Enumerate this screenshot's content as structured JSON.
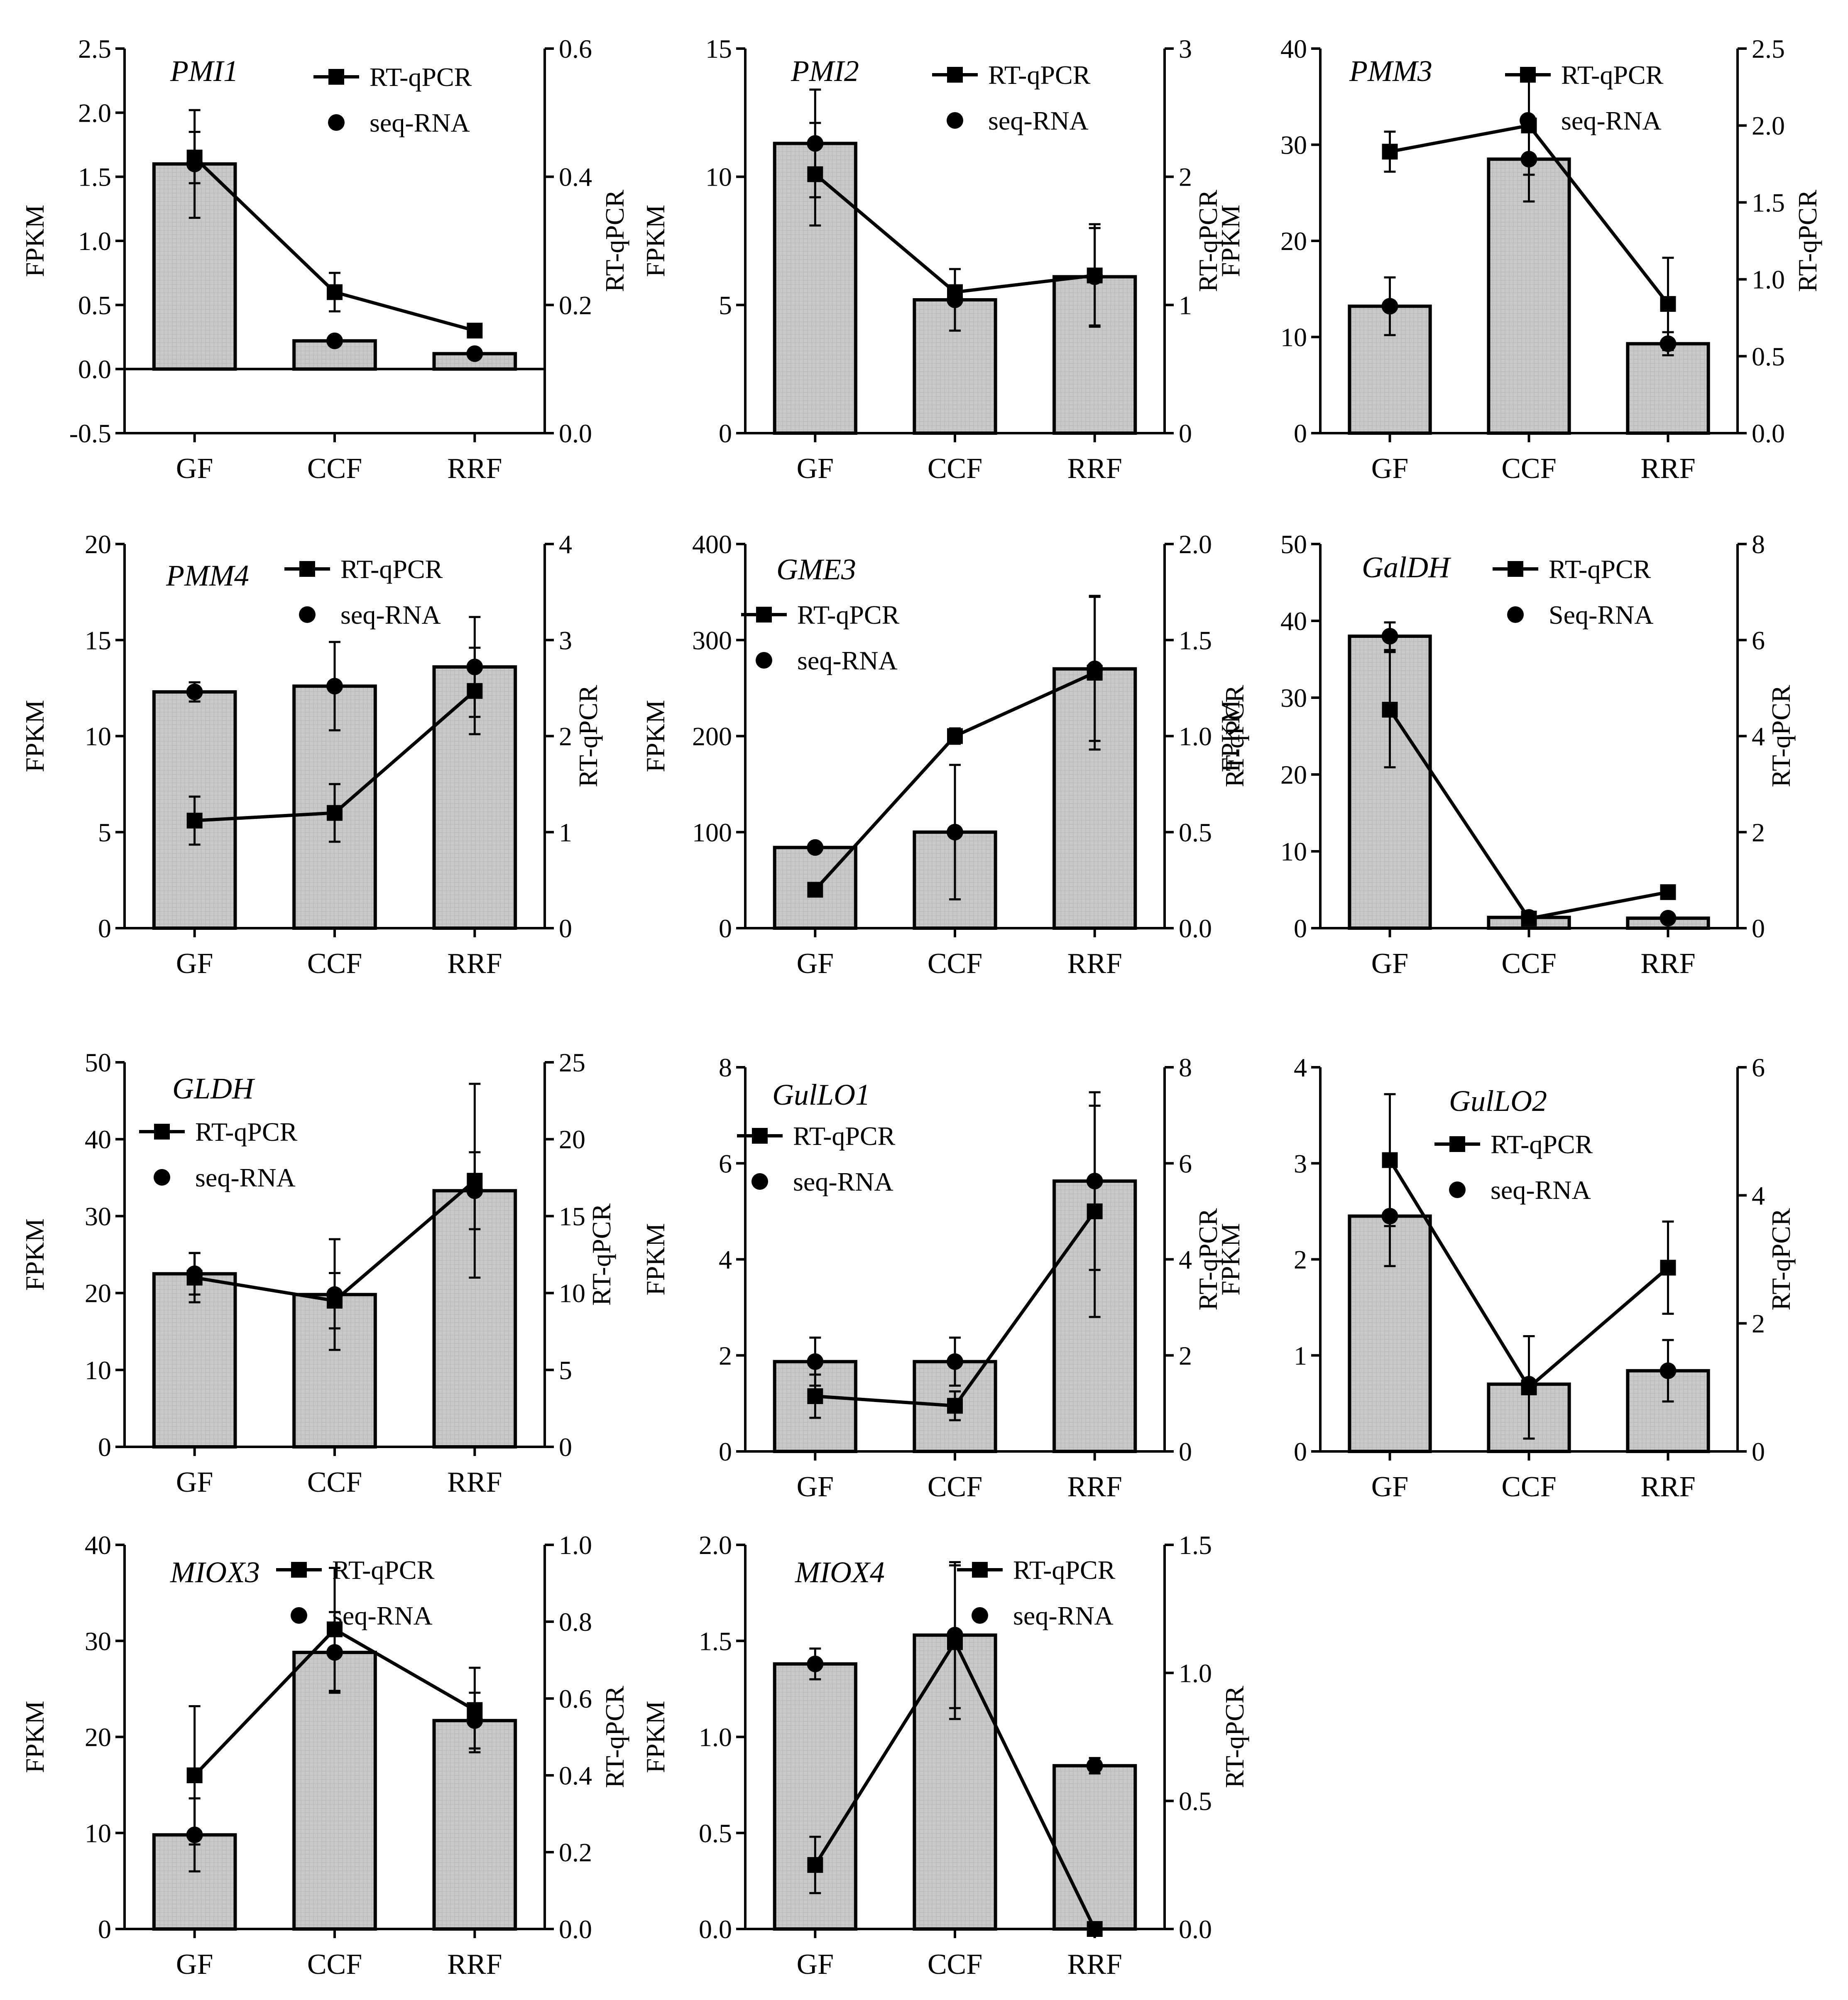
{
  "figure": {
    "description_domain": "Chart",
    "categories": [
      "GF",
      "CCF",
      "RRF"
    ]
  },
  "chart_data": [
    {
      "type": "bar",
      "title": "PMI1",
      "xlabel": "",
      "ylabel": "FPKM",
      "y2label": "RT-qPCR",
      "categories": [
        "GF",
        "CCF",
        "RRF"
      ],
      "ylim": [
        -0.5,
        2.5
      ],
      "yticks": [
        "-0.5",
        "0.0",
        "0.5",
        "1.0",
        "1.5",
        "2.0",
        "2.5"
      ],
      "ytick_values": [
        -0.5,
        0,
        0.5,
        1,
        1.5,
        2,
        2.5
      ],
      "y2lim": [
        0,
        0.6
      ],
      "y2ticks": [
        "0.0",
        "0.2",
        "0.4",
        "0.6"
      ],
      "y2tick_values": [
        0,
        0.2,
        0.4,
        0.6
      ],
      "legend": [
        "RT-qPCR",
        "seq-RNA"
      ],
      "legend_position": "top-right",
      "series": [
        {
          "name": "seq-RNA",
          "kind": "bar+dot",
          "values": [
            1.6,
            0.22,
            0.12
          ],
          "errors": [
            0.42,
            0.0,
            0.0
          ]
        },
        {
          "name": "RT-qPCR",
          "kind": "line+square",
          "values": [
            0.43,
            0.22,
            0.16
          ],
          "errors": [
            0.04,
            0.03,
            0.0
          ]
        }
      ]
    },
    {
      "type": "bar",
      "title": "PMI2",
      "xlabel": "",
      "ylabel": "FPKM",
      "y2label": "RT-qPCR",
      "categories": [
        "GF",
        "CCF",
        "RRF"
      ],
      "ylim": [
        0,
        15
      ],
      "yticks": [
        "0",
        "5",
        "10",
        "15"
      ],
      "ytick_values": [
        0,
        5,
        10,
        15
      ],
      "y2lim": [
        0,
        3
      ],
      "y2ticks": [
        "0",
        "1",
        "2",
        "3"
      ],
      "y2tick_values": [
        0,
        1,
        2,
        3
      ],
      "legend": [
        "RT-qPCR",
        "seq-RNA"
      ],
      "legend_position": "top-right",
      "series": [
        {
          "name": "seq-RNA",
          "kind": "bar+dot",
          "values": [
            11.3,
            5.2,
            6.1
          ],
          "errors": [
            2.1,
            1.2,
            1.9
          ]
        },
        {
          "name": "RT-qPCR",
          "kind": "line+square",
          "values": [
            2.02,
            1.1,
            1.23
          ],
          "errors": [
            0.4,
            0.0,
            0.4
          ]
        }
      ]
    },
    {
      "type": "bar",
      "title": "PMM3",
      "xlabel": "",
      "ylabel": "FPKM",
      "y2label": "RT-qPCR",
      "categories": [
        "GF",
        "CCF",
        "RRF"
      ],
      "ylim": [
        0,
        40
      ],
      "yticks": [
        "0",
        "10",
        "20",
        "30",
        "40"
      ],
      "ytick_values": [
        0,
        10,
        20,
        30,
        40
      ],
      "y2lim": [
        0,
        2.5
      ],
      "y2ticks": [
        "0.0",
        "0.5",
        "1.0",
        "1.5",
        "2.0",
        "2.5"
      ],
      "y2tick_values": [
        0,
        0.5,
        1,
        1.5,
        2,
        2.5
      ],
      "legend": [
        "RT-qPCR",
        "seq-RNA"
      ],
      "legend_position": "top-right",
      "series": [
        {
          "name": "seq-RNA",
          "kind": "bar+dot",
          "values": [
            13.2,
            28.5,
            9.3
          ],
          "errors": [
            3.0,
            4.4,
            1.2
          ]
        },
        {
          "name": "RT-qPCR",
          "kind": "line+square",
          "values": [
            1.83,
            2.0,
            0.84
          ],
          "errors": [
            0.13,
            0.32,
            0.3
          ]
        }
      ]
    },
    {
      "type": "bar",
      "title": "PMM4",
      "xlabel": "",
      "ylabel": "FPKM",
      "y2label": "RT-qPCR",
      "categories": [
        "GF",
        "CCF",
        "RRF"
      ],
      "ylim": [
        0,
        20
      ],
      "yticks": [
        "0",
        "5",
        "10",
        "15",
        "20"
      ],
      "ytick_values": [
        0,
        5,
        10,
        15,
        20
      ],
      "y2lim": [
        0,
        4
      ],
      "y2ticks": [
        "0",
        "1",
        "2",
        "3",
        "4"
      ],
      "y2tick_values": [
        0,
        1,
        2,
        3,
        4
      ],
      "legend": [
        "RT-qPCR",
        "seq-RNA"
      ],
      "legend_position": "top-right",
      "series": [
        {
          "name": "seq-RNA",
          "kind": "bar+dot",
          "values": [
            12.3,
            12.6,
            13.6
          ],
          "errors": [
            0.5,
            2.3,
            2.6
          ]
        },
        {
          "name": "RT-qPCR",
          "kind": "line+square",
          "values": [
            1.12,
            1.2,
            2.47
          ],
          "errors": [
            0.25,
            0.3,
            0.45
          ]
        }
      ]
    },
    {
      "type": "bar",
      "title": "GME3",
      "xlabel": "",
      "ylabel": "FPKM",
      "y2label": "RT-qPCR",
      "categories": [
        "GF",
        "CCF",
        "RRF"
      ],
      "ylim": [
        0,
        400
      ],
      "yticks": [
        "0",
        "100",
        "200",
        "300",
        "400"
      ],
      "ytick_values": [
        0,
        100,
        200,
        300,
        400
      ],
      "y2lim": [
        0,
        2.0
      ],
      "y2ticks": [
        "0.0",
        "0.5",
        "1.0",
        "1.5",
        "2.0"
      ],
      "y2tick_values": [
        0,
        0.5,
        1,
        1.5,
        2
      ],
      "legend": [
        "RT-qPCR",
        "seq-RNA"
      ],
      "legend_position": "top-left",
      "series": [
        {
          "name": "seq-RNA",
          "kind": "bar+dot",
          "values": [
            84,
            100,
            270
          ],
          "errors": [
            0,
            70,
            75
          ]
        },
        {
          "name": "RT-qPCR",
          "kind": "line+square",
          "values": [
            0.2,
            1.0,
            1.33
          ],
          "errors": [
            0.0,
            0.04,
            0.4
          ]
        }
      ]
    },
    {
      "type": "bar",
      "title": "GalDH",
      "xlabel": "",
      "ylabel": "FPKM",
      "y2label": "RT-qPCR",
      "categories": [
        "GF",
        "CCF",
        "RRF"
      ],
      "ylim": [
        0,
        50
      ],
      "yticks": [
        "0",
        "10",
        "20",
        "30",
        "40",
        "50"
      ],
      "ytick_values": [
        0,
        10,
        20,
        30,
        40,
        50
      ],
      "y2lim": [
        0,
        8
      ],
      "y2ticks": [
        "0",
        "2",
        "4",
        "6",
        "8"
      ],
      "y2tick_values": [
        0,
        2,
        4,
        6,
        8
      ],
      "legend": [
        "RT-qPCR",
        "Seq-RNA"
      ],
      "legend_position": "top-right",
      "series": [
        {
          "name": "Seq-RNA",
          "kind": "bar+dot",
          "values": [
            38.0,
            1.4,
            1.3
          ],
          "errors": [
            1.8,
            0.0,
            0.0
          ]
        },
        {
          "name": "RT-qPCR",
          "kind": "line+square",
          "values": [
            4.55,
            0.2,
            0.75
          ],
          "errors": [
            1.2,
            0.0,
            0.0
          ]
        }
      ]
    },
    {
      "type": "bar",
      "title": "GLDH",
      "xlabel": "",
      "ylabel": "FPKM",
      "y2label": "RT-qPCR",
      "categories": [
        "GF",
        "CCF",
        "RRF"
      ],
      "ylim": [
        0,
        50
      ],
      "yticks": [
        "0",
        "10",
        "20",
        "30",
        "40",
        "50"
      ],
      "ytick_values": [
        0,
        10,
        20,
        30,
        40,
        50
      ],
      "y2lim": [
        0,
        25
      ],
      "y2ticks": [
        "0",
        "5",
        "10",
        "15",
        "20",
        "25"
      ],
      "y2tick_values": [
        0,
        5,
        10,
        15,
        20,
        25
      ],
      "legend": [
        "RT-qPCR",
        "seq-RNA"
      ],
      "legend_position": "top-left",
      "series": [
        {
          "name": "seq-RNA",
          "kind": "bar+dot",
          "values": [
            22.5,
            19.8,
            33.3
          ],
          "errors": [
            2.7,
            7.2,
            5.0
          ]
        },
        {
          "name": "RT-qPCR",
          "kind": "line+square",
          "values": [
            11.0,
            9.5,
            17.3
          ],
          "errors": [
            1.6,
            1.8,
            6.3
          ]
        }
      ]
    },
    {
      "type": "bar",
      "title": "GulLO1",
      "xlabel": "",
      "ylabel": "FPKM",
      "y2label": "RT-qPCR",
      "categories": [
        "GF",
        "CCF",
        "RRF"
      ],
      "ylim": [
        0,
        8
      ],
      "yticks": [
        "0",
        "2",
        "4",
        "6",
        "8"
      ],
      "ytick_values": [
        0,
        2,
        4,
        6,
        8
      ],
      "y2lim": [
        0,
        8
      ],
      "y2ticks": [
        "0",
        "2",
        "4",
        "6",
        "8"
      ],
      "y2tick_values": [
        0,
        2,
        4,
        6,
        8
      ],
      "legend": [
        "RT-qPCR",
        "seq-RNA"
      ],
      "legend_position": "top-left",
      "series": [
        {
          "name": "seq-RNA",
          "kind": "bar+dot",
          "values": [
            1.87,
            1.87,
            5.63
          ],
          "errors": [
            0.5,
            0.5,
            1.85
          ]
        },
        {
          "name": "RT-qPCR",
          "kind": "line+square",
          "values": [
            1.15,
            0.95,
            5.0
          ],
          "errors": [
            0.45,
            0.3,
            2.2
          ]
        }
      ]
    },
    {
      "type": "bar",
      "title": "GulLO2",
      "xlabel": "",
      "ylabel": "FPKM",
      "y2label": "RT-qPCR",
      "categories": [
        "GF",
        "CCF",
        "RRF"
      ],
      "ylim": [
        0,
        4
      ],
      "yticks": [
        "0",
        "1",
        "2",
        "3",
        "4"
      ],
      "ytick_values": [
        0,
        1,
        2,
        3,
        4
      ],
      "y2lim": [
        0,
        6
      ],
      "y2ticks": [
        "0",
        "2",
        "4",
        "6"
      ],
      "y2tick_values": [
        0,
        2,
        4,
        6
      ],
      "legend": [
        "RT-qPCR",
        "seq-RNA"
      ],
      "legend_position": "top-right",
      "series": [
        {
          "name": "seq-RNA",
          "kind": "bar+dot",
          "values": [
            2.45,
            0.7,
            0.84
          ],
          "errors": [
            0.52,
            0.0,
            0.32
          ]
        },
        {
          "name": "RT-qPCR",
          "kind": "line+square",
          "values": [
            4.55,
            1.0,
            2.87
          ],
          "errors": [
            1.03,
            0.8,
            0.72
          ]
        }
      ]
    },
    {
      "type": "bar",
      "title": "MIOX3",
      "xlabel": "",
      "ylabel": "FPKM",
      "y2label": "RT-qPCR",
      "categories": [
        "GF",
        "CCF",
        "RRF"
      ],
      "ylim": [
        0,
        40
      ],
      "yticks": [
        "0",
        "10",
        "20",
        "30",
        "40"
      ],
      "ytick_values": [
        0,
        10,
        20,
        30,
        40
      ],
      "y2lim": [
        0,
        1.0
      ],
      "y2ticks": [
        "0.0",
        "0.2",
        "0.4",
        "0.6",
        "0.8",
        "1.0"
      ],
      "y2tick_values": [
        0,
        0.2,
        0.4,
        0.6,
        0.8,
        1.0
      ],
      "legend": [
        "RT-qPCR",
        "seq-RNA"
      ],
      "legend_position": "top-right",
      "series": [
        {
          "name": "seq-RNA",
          "kind": "bar+dot",
          "values": [
            9.8,
            28.8,
            21.7
          ],
          "errors": [
            3.8,
            4.2,
            2.9
          ]
        },
        {
          "name": "RT-qPCR",
          "kind": "line+square",
          "values": [
            0.4,
            0.78,
            0.57
          ],
          "errors": [
            0.18,
            0.16,
            0.11
          ]
        }
      ]
    },
    {
      "type": "bar",
      "title": "MIOX4",
      "xlabel": "",
      "ylabel": "FPKM",
      "y2label": "RT-qPCR",
      "categories": [
        "GF",
        "CCF",
        "RRF"
      ],
      "ylim": [
        0,
        2.0
      ],
      "yticks": [
        "0.0",
        "0.5",
        "1.0",
        "1.5",
        "2.0"
      ],
      "ytick_values": [
        0,
        0.5,
        1,
        1.5,
        2
      ],
      "y2lim": [
        0,
        1.5
      ],
      "y2ticks": [
        "0.0",
        "0.5",
        "1.0",
        "1.5"
      ],
      "y2tick_values": [
        0,
        0.5,
        1,
        1.5
      ],
      "legend": [
        "RT-qPCR",
        "seq-RNA"
      ],
      "legend_position": "top-right",
      "series": [
        {
          "name": "seq-RNA",
          "kind": "bar+dot",
          "values": [
            1.38,
            1.53,
            0.85
          ],
          "errors": [
            0.08,
            0.38,
            0.04
          ]
        },
        {
          "name": "RT-qPCR",
          "kind": "line+square",
          "values": [
            0.25,
            1.12,
            0.0
          ],
          "errors": [
            0.11,
            0.3,
            0.0
          ]
        }
      ]
    }
  ]
}
